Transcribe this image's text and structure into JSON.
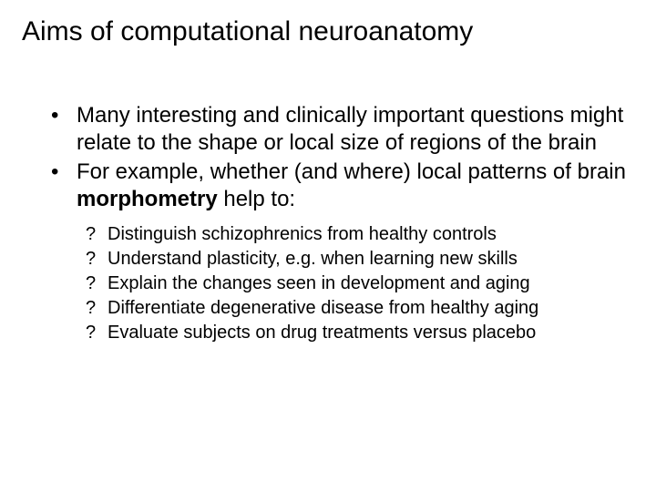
{
  "title": "Aims of computational neuroanatomy",
  "bullets": [
    {
      "text": "Many interesting and clinically important questions might relate to the shape or local size of regions of the brain"
    },
    {
      "prefix": "For example, whether (and where) local patterns of brain ",
      "bold": "morphometry",
      "suffix": " help to:"
    }
  ],
  "sub_marker": "?",
  "sub_bullets": [
    "Distinguish schizophrenics from healthy controls",
    "Understand plasticity, e.g. when learning new skills",
    "Explain the changes seen in development and aging",
    "Differentiate degenerative disease from healthy aging",
    "Evaluate subjects on drug treatments versus placebo"
  ],
  "colors": {
    "background": "#ffffff",
    "text": "#000000"
  },
  "typography": {
    "title_fontsize": 30,
    "body_fontsize": 24,
    "sub_fontsize": 20,
    "font_family": "Arial"
  }
}
